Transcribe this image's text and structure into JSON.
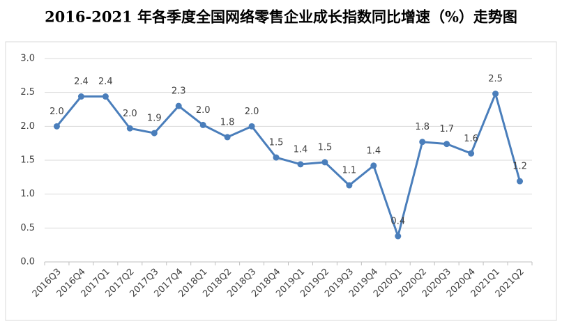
{
  "chart_data": {
    "type": "line",
    "title": "2016-2021 年各季度全国网络零售企业成长指数同比增速（%）走势图",
    "categories": [
      "2016Q3",
      "2016Q4",
      "2017Q1",
      "2017Q2",
      "2017Q3",
      "2017Q4",
      "2018Q1",
      "2018Q2",
      "2018Q3",
      "2018Q4",
      "2019Q1",
      "2019Q2",
      "2019Q3",
      "2019Q4",
      "2020Q1",
      "2020Q2",
      "2020Q3",
      "2020Q4",
      "2021Q1",
      "2021Q2"
    ],
    "values": [
      2.0,
      2.44,
      2.44,
      1.97,
      1.9,
      2.3,
      2.02,
      1.84,
      2.0,
      1.54,
      1.44,
      1.47,
      1.13,
      1.42,
      0.38,
      1.77,
      1.74,
      1.6,
      2.48,
      1.19
    ],
    "value_labels": [
      "2.0",
      "2.4",
      "2.4",
      "2.0",
      "1.9",
      "2.3",
      "2.0",
      "1.8",
      "2.0",
      "1.5",
      "1.4",
      "1.5",
      "1.1",
      "1.4",
      "0.4",
      "1.8",
      "1.7",
      "1.6",
      "2.5",
      "1.2"
    ],
    "color": "#4a7ebb",
    "ylim": [
      0,
      3
    ],
    "yticks": [
      {
        "value": 0,
        "label": "0.0"
      },
      {
        "value": 0.5,
        "label": "0.5"
      },
      {
        "value": 1,
        "label": "1.0"
      },
      {
        "value": 1.5,
        "label": "1.5"
      },
      {
        "value": 2,
        "label": "2.0"
      },
      {
        "value": 2.5,
        "label": "2.5"
      },
      {
        "value": 3,
        "label": "3.0"
      }
    ],
    "grid": true
  }
}
